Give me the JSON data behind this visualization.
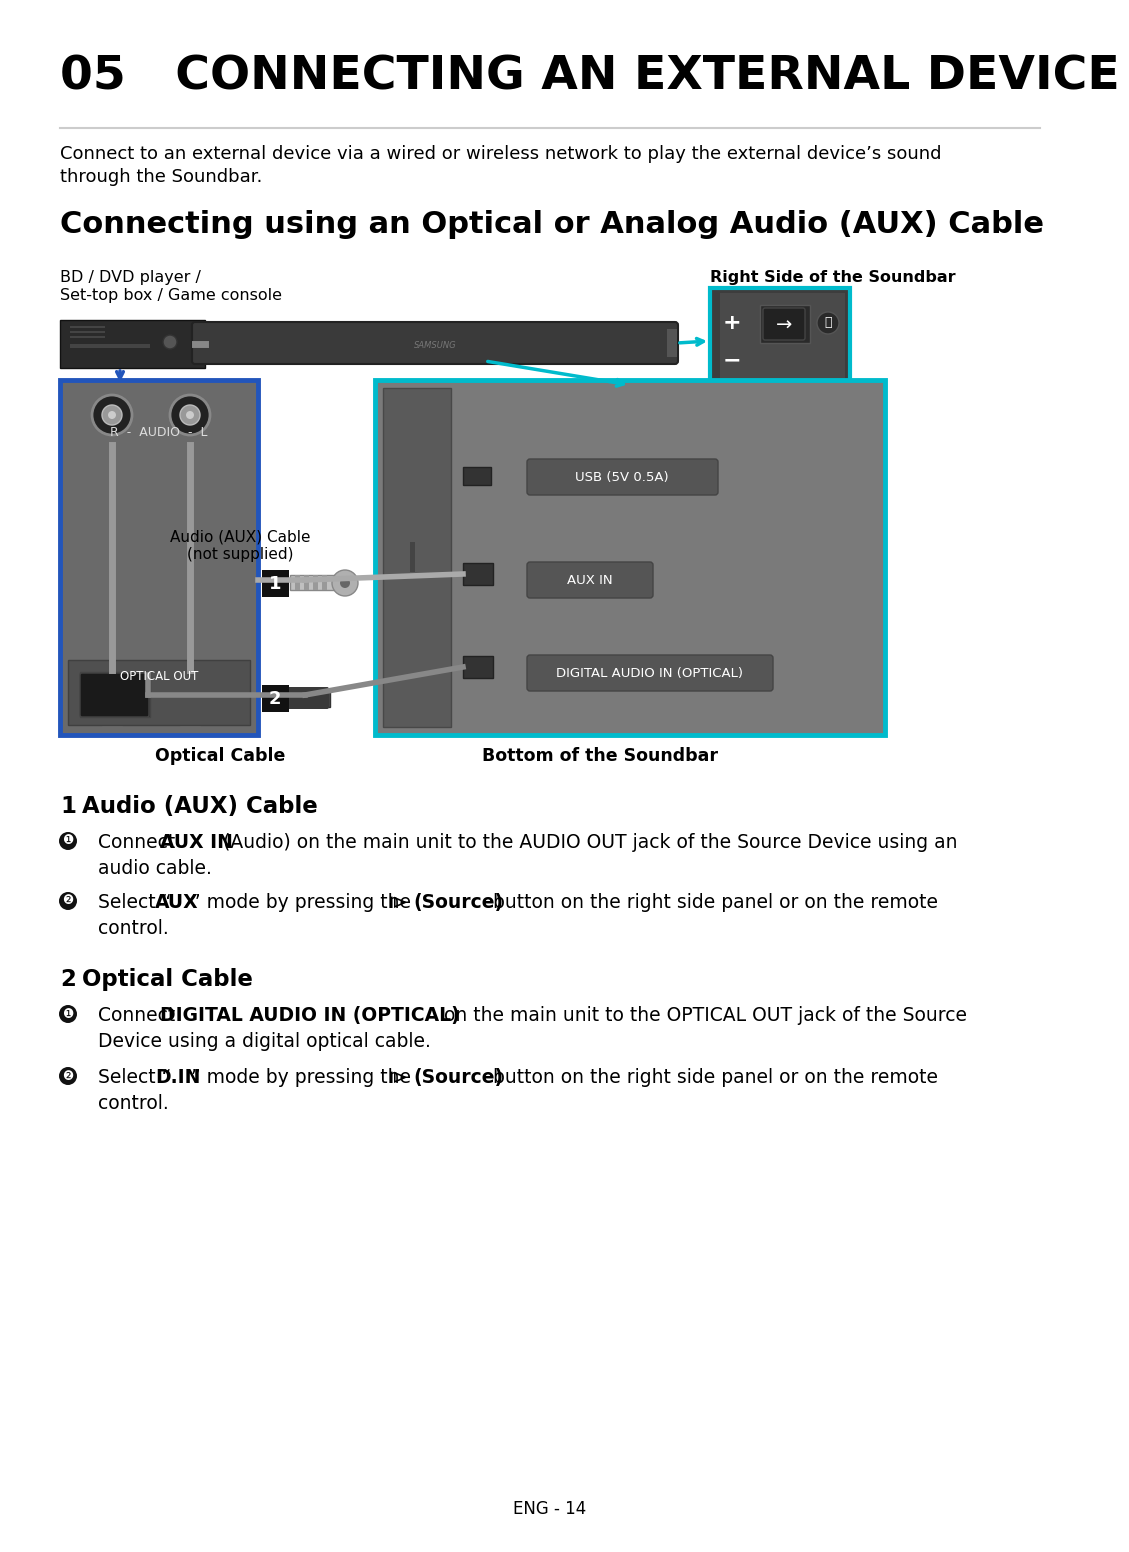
{
  "title": "05   CONNECTING AN EXTERNAL DEVICE",
  "subtitle": "Connecting using an Optical or Analog Audio (AUX) Cable",
  "intro_line1": "Connect to an external device via a wired or wireless network to play the external device’s sound",
  "intro_line2": "through the Soundbar.",
  "label_bd_line1": "BD / DVD player /",
  "label_bd_line2": "Set-top box / Game console",
  "label_right_soundbar": "Right Side of the Soundbar",
  "label_bottom_soundbar": "Bottom of the Soundbar",
  "label_aux_cable_line1": "Audio (AUX) Cable",
  "label_aux_cable_line2": "(not supplied)",
  "label_optical_cable": "Optical Cable",
  "label_optical_out": "OPTICAL OUT",
  "label_r_audio_l": "R  -  AUDIO  -  L",
  "label_usb": "USB (5V 0.5A)",
  "label_aux_in": "AUX IN",
  "label_digital": "DIGITAL AUDIO IN (OPTICAL)",
  "page": "ENG - 14",
  "bg_color": "#ffffff",
  "text_color": "#000000",
  "blue_border": "#2255bb",
  "cyan_border": "#00bbcc",
  "dark_gray": "#333333",
  "mid_gray": "#666666",
  "light_gray": "#aaaaaa"
}
